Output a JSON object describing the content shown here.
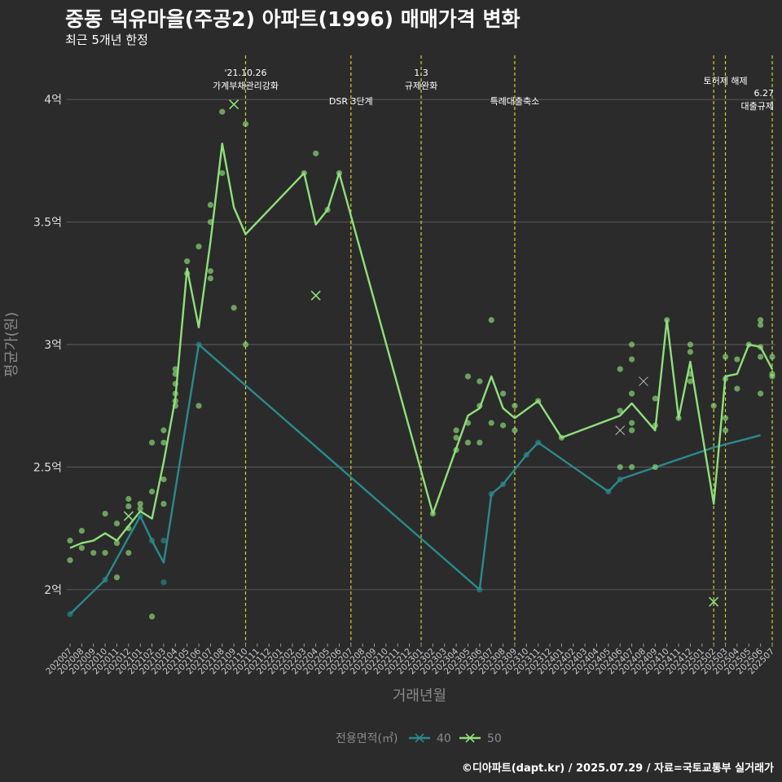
{
  "title": "중동 덕유마을(주공2) 아파트(1996) 매매가격 변화",
  "subtitle": "최근 5개년 한정",
  "caption": "©디아파트(dapt.kr) / 2025.07.29 / 자료=국토교통부 실거래가",
  "chart_data": {
    "type": "line",
    "xlabel": "거래년월",
    "ylabel": "평균가(원)",
    "y_ticks": [
      {
        "value": 2.0,
        "label": "2억"
      },
      {
        "value": 2.5,
        "label": "2.5억"
      },
      {
        "value": 3.0,
        "label": "3억"
      },
      {
        "value": 3.5,
        "label": "3.5억"
      },
      {
        "value": 4.0,
        "label": "4억"
      }
    ],
    "ylim": [
      1.78,
      4.2
    ],
    "grid": true,
    "legend": {
      "title": "전용면적(㎡)",
      "position": "bottom",
      "items": [
        "40",
        "50"
      ]
    },
    "colors": {
      "40": "#2a8a8c",
      "50": "#8fe07a",
      "event": "#d4d02a",
      "background": "#2b2b2b",
      "grid": "#555555"
    },
    "categories": [
      "202007",
      "202008",
      "202009",
      "202010",
      "202011",
      "202012",
      "202101",
      "202102",
      "202103",
      "202104",
      "202105",
      "202106",
      "202107",
      "202108",
      "202109",
      "202110",
      "202111",
      "202112",
      "202201",
      "202202",
      "202203",
      "202204",
      "202205",
      "202206",
      "202207",
      "202208",
      "202209",
      "202210",
      "202211",
      "202212",
      "202301",
      "202302",
      "202303",
      "202304",
      "202305",
      "202306",
      "202307",
      "202308",
      "202309",
      "202310",
      "202311",
      "202312",
      "202401",
      "202402",
      "202403",
      "202404",
      "202405",
      "202406",
      "202407",
      "202408",
      "202409",
      "202410",
      "202411",
      "202412",
      "202501",
      "202502",
      "202503",
      "202504",
      "202505",
      "202506",
      "202507"
    ],
    "events": [
      {
        "x": "202110",
        "label": "'21.10.26\n가계부채관리강화"
      },
      {
        "x": "202207",
        "label": "DSR 3단계"
      },
      {
        "x": "202301",
        "label": "1.3\n규제완화"
      },
      {
        "x": "202309",
        "label": "특례대출축소"
      },
      {
        "x": "202502",
        "label": ""
      },
      {
        "x": "202503",
        "label": "토허제 해제"
      },
      {
        "x": "202507",
        "label": "6.27\n대출규제"
      }
    ],
    "series": [
      {
        "name": "40",
        "x": [
          "202007",
          "202010",
          "202101",
          "202102",
          "202103",
          "202106",
          "202306",
          "202307",
          "202308",
          "202309",
          "202310",
          "202311",
          "202405",
          "202406",
          "202502",
          "202506"
        ],
        "y": [
          1.9,
          2.04,
          2.3,
          2.2,
          2.11,
          3.0,
          2.0,
          2.39,
          2.43,
          2.49,
          2.55,
          2.6,
          2.4,
          2.45,
          2.58,
          2.63
        ]
      },
      {
        "name": "50",
        "x": [
          "202007",
          "202008",
          "202009",
          "202010",
          "202011",
          "202012",
          "202101",
          "202102",
          "202103",
          "202104",
          "202105",
          "202106",
          "202107",
          "202108",
          "202109",
          "202110",
          "202203",
          "202204",
          "202205",
          "202206",
          "202302",
          "202305",
          "202306",
          "202307",
          "202308",
          "202309",
          "202311",
          "202401",
          "202406",
          "202407",
          "202409",
          "202410",
          "202411",
          "202412",
          "202502",
          "202503",
          "202504",
          "202505",
          "202506",
          "202507"
        ],
        "y": [
          2.17,
          2.19,
          2.2,
          2.23,
          2.2,
          2.26,
          2.32,
          2.29,
          2.52,
          2.78,
          3.31,
          3.07,
          3.42,
          3.82,
          3.56,
          3.45,
          3.7,
          3.49,
          3.55,
          3.7,
          2.31,
          2.71,
          2.74,
          2.87,
          2.74,
          2.7,
          2.77,
          2.62,
          2.71,
          2.76,
          2.65,
          3.1,
          2.7,
          2.93,
          2.35,
          2.87,
          2.88,
          3.0,
          2.99,
          2.9
        ]
      }
    ],
    "points": [
      {
        "s": "40",
        "x": "202007",
        "y": 1.9
      },
      {
        "s": "40",
        "x": "202010",
        "y": 2.04
      },
      {
        "s": "40",
        "x": "202101",
        "y": 2.3
      },
      {
        "s": "40",
        "x": "202102",
        "y": 2.2
      },
      {
        "s": "40",
        "x": "202103",
        "y": 2.03
      },
      {
        "s": "40",
        "x": "202103",
        "y": 2.2
      },
      {
        "s": "40",
        "x": "202106",
        "y": 3.0
      },
      {
        "s": "40",
        "x": "202306",
        "y": 2.0
      },
      {
        "s": "40",
        "x": "202307",
        "y": 2.39
      },
      {
        "s": "40",
        "x": "202308",
        "y": 2.43
      },
      {
        "s": "40",
        "x": "202310",
        "y": 2.55
      },
      {
        "s": "40",
        "x": "202311",
        "y": 2.6
      },
      {
        "s": "40",
        "x": "202405",
        "y": 2.4
      },
      {
        "s": "40",
        "x": "202406",
        "y": 2.45
      },
      {
        "s": "50",
        "x": "202007",
        "y": 2.2
      },
      {
        "s": "50",
        "x": "202007",
        "y": 2.12
      },
      {
        "s": "50",
        "x": "202008",
        "y": 2.24
      },
      {
        "s": "50",
        "x": "202008",
        "y": 2.17
      },
      {
        "s": "50",
        "x": "202009",
        "y": 2.15
      },
      {
        "s": "50",
        "x": "202010",
        "y": 2.31
      },
      {
        "s": "50",
        "x": "202010",
        "y": 2.15
      },
      {
        "s": "50",
        "x": "202011",
        "y": 2.27
      },
      {
        "s": "50",
        "x": "202011",
        "y": 2.19
      },
      {
        "s": "50",
        "x": "202011",
        "y": 2.05
      },
      {
        "s": "50",
        "x": "202012",
        "y": 2.37
      },
      {
        "s": "50",
        "x": "202012",
        "y": 2.34
      },
      {
        "s": "50",
        "x": "202012",
        "y": 2.25
      },
      {
        "s": "50",
        "x": "202012",
        "y": 2.15
      },
      {
        "s": "50",
        "x": "202101",
        "y": 2.35
      },
      {
        "s": "50",
        "x": "202101",
        "y": 2.33
      },
      {
        "s": "50",
        "x": "202102",
        "y": 2.6
      },
      {
        "s": "50",
        "x": "202102",
        "y": 2.4
      },
      {
        "s": "50",
        "x": "202102",
        "y": 1.89
      },
      {
        "s": "50",
        "x": "202103",
        "y": 2.65
      },
      {
        "s": "50",
        "x": "202103",
        "y": 2.6
      },
      {
        "s": "50",
        "x": "202103",
        "y": 2.45
      },
      {
        "s": "50",
        "x": "202103",
        "y": 2.35
      },
      {
        "s": "50",
        "x": "202104",
        "y": 2.9
      },
      {
        "s": "50",
        "x": "202104",
        "y": 2.88
      },
      {
        "s": "50",
        "x": "202104",
        "y": 2.84
      },
      {
        "s": "50",
        "x": "202104",
        "y": 2.8
      },
      {
        "s": "50",
        "x": "202104",
        "y": 2.77
      },
      {
        "s": "50",
        "x": "202104",
        "y": 2.75
      },
      {
        "s": "50",
        "x": "202105",
        "y": 3.34
      },
      {
        "s": "50",
        "x": "202105",
        "y": 3.29
      },
      {
        "s": "50",
        "x": "202106",
        "y": 3.4
      },
      {
        "s": "50",
        "x": "202106",
        "y": 2.75
      },
      {
        "s": "50",
        "x": "202107",
        "y": 3.57
      },
      {
        "s": "50",
        "x": "202107",
        "y": 3.5
      },
      {
        "s": "50",
        "x": "202107",
        "y": 3.3
      },
      {
        "s": "50",
        "x": "202107",
        "y": 3.27
      },
      {
        "s": "50",
        "x": "202108",
        "y": 3.95
      },
      {
        "s": "50",
        "x": "202108",
        "y": 3.7
      },
      {
        "s": "50",
        "x": "202109",
        "y": 3.15
      },
      {
        "s": "50",
        "x": "202110",
        "y": 3.9
      },
      {
        "s": "50",
        "x": "202110",
        "y": 3.0
      },
      {
        "s": "50",
        "x": "202203",
        "y": 3.7
      },
      {
        "s": "50",
        "x": "202204",
        "y": 3.78
      },
      {
        "s": "50",
        "x": "202205",
        "y": 3.55
      },
      {
        "s": "50",
        "x": "202206",
        "y": 3.7
      },
      {
        "s": "50",
        "x": "202302",
        "y": 2.31
      },
      {
        "s": "50",
        "x": "202304",
        "y": 2.65
      },
      {
        "s": "50",
        "x": "202304",
        "y": 2.62
      },
      {
        "s": "50",
        "x": "202304",
        "y": 2.57
      },
      {
        "s": "50",
        "x": "202305",
        "y": 2.87
      },
      {
        "s": "50",
        "x": "202305",
        "y": 2.68
      },
      {
        "s": "50",
        "x": "202305",
        "y": 2.6
      },
      {
        "s": "50",
        "x": "202306",
        "y": 2.85
      },
      {
        "s": "50",
        "x": "202306",
        "y": 2.75
      },
      {
        "s": "50",
        "x": "202306",
        "y": 2.6
      },
      {
        "s": "50",
        "x": "202307",
        "y": 3.1
      },
      {
        "s": "50",
        "x": "202307",
        "y": 2.68
      },
      {
        "s": "50",
        "x": "202308",
        "y": 2.8
      },
      {
        "s": "50",
        "x": "202308",
        "y": 2.67
      },
      {
        "s": "50",
        "x": "202309",
        "y": 2.75
      },
      {
        "s": "50",
        "x": "202309",
        "y": 2.65
      },
      {
        "s": "50",
        "x": "202311",
        "y": 2.77
      },
      {
        "s": "50",
        "x": "202401",
        "y": 2.62
      },
      {
        "s": "50",
        "x": "202406",
        "y": 2.9
      },
      {
        "s": "50",
        "x": "202406",
        "y": 2.73
      },
      {
        "s": "50",
        "x": "202406",
        "y": 2.5
      },
      {
        "s": "50",
        "x": "202407",
        "y": 3.0
      },
      {
        "s": "50",
        "x": "202407",
        "y": 2.94
      },
      {
        "s": "50",
        "x": "202407",
        "y": 2.8
      },
      {
        "s": "50",
        "x": "202407",
        "y": 2.68
      },
      {
        "s": "50",
        "x": "202407",
        "y": 2.65
      },
      {
        "s": "50",
        "x": "202407",
        "y": 2.5
      },
      {
        "s": "50",
        "x": "202409",
        "y": 2.78
      },
      {
        "s": "50",
        "x": "202409",
        "y": 2.67
      },
      {
        "s": "50",
        "x": "202409",
        "y": 2.5
      },
      {
        "s": "50",
        "x": "202410",
        "y": 3.1
      },
      {
        "s": "50",
        "x": "202411",
        "y": 2.7
      },
      {
        "s": "50",
        "x": "202412",
        "y": 3.0
      },
      {
        "s": "50",
        "x": "202412",
        "y": 2.97
      },
      {
        "s": "50",
        "x": "202412",
        "y": 2.88
      },
      {
        "s": "50",
        "x": "202412",
        "y": 2.85
      },
      {
        "s": "50",
        "x": "202502",
        "y": 2.75
      },
      {
        "s": "50",
        "x": "202503",
        "y": 2.95
      },
      {
        "s": "50",
        "x": "202503",
        "y": 2.86
      },
      {
        "s": "50",
        "x": "202503",
        "y": 2.7
      },
      {
        "s": "50",
        "x": "202503",
        "y": 2.65
      },
      {
        "s": "50",
        "x": "202504",
        "y": 2.94
      },
      {
        "s": "50",
        "x": "202504",
        "y": 2.82
      },
      {
        "s": "50",
        "x": "202505",
        "y": 3.0
      },
      {
        "s": "50",
        "x": "202506",
        "y": 3.1
      },
      {
        "s": "50",
        "x": "202506",
        "y": 3.08
      },
      {
        "s": "50",
        "x": "202506",
        "y": 2.99
      },
      {
        "s": "50",
        "x": "202506",
        "y": 2.95
      },
      {
        "s": "50",
        "x": "202506",
        "y": 2.8
      },
      {
        "s": "50",
        "x": "202507",
        "y": 2.95
      },
      {
        "s": "50",
        "x": "202507",
        "y": 2.88
      },
      {
        "s": "50",
        "x": "202507",
        "y": 2.87
      }
    ],
    "crosses": [
      {
        "x": "202012",
        "y": 2.3,
        "color": "#8fe07a"
      },
      {
        "x": "202109",
        "y": 3.98,
        "color": "#8fe07a"
      },
      {
        "x": "202204",
        "y": 3.2,
        "color": "#8fe07a"
      },
      {
        "x": "202406",
        "y": 2.65,
        "color": "#2a2a2a"
      },
      {
        "x": "202408",
        "y": 2.85,
        "color": "#2a2a2a"
      },
      {
        "x": "202502",
        "y": 1.95,
        "color": "#8fe07a"
      }
    ]
  }
}
